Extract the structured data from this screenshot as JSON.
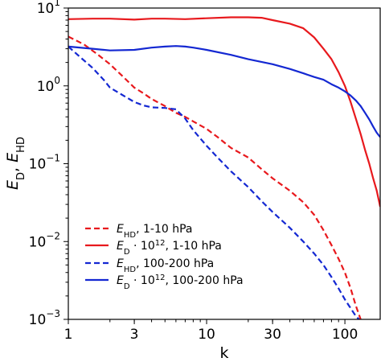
{
  "chart_data": {
    "type": "line",
    "xscale": "log",
    "yscale": "log",
    "xlim": [
      1,
      180
    ],
    "ylim": [
      0.001,
      10
    ],
    "xlabel": "k",
    "ylabel": "E_D, E_HD",
    "grid": false,
    "legend_position": "lower-left",
    "x_ticks": [
      {
        "value": 1,
        "label": "1"
      },
      {
        "value": 3,
        "label": "3"
      },
      {
        "value": 10,
        "label": "10"
      },
      {
        "value": 30,
        "label": "30"
      },
      {
        "value": 100,
        "label": "100"
      }
    ],
    "y_ticks": [
      {
        "value": 0.001,
        "base": "10",
        "exp": "−3"
      },
      {
        "value": 0.01,
        "base": "10",
        "exp": "−2"
      },
      {
        "value": 0.1,
        "base": "10",
        "exp": "−1"
      },
      {
        "value": 1,
        "base": "10",
        "exp": "0"
      },
      {
        "value": 10,
        "base": "10",
        "exp": "1"
      }
    ],
    "series": [
      {
        "name": "E_HD, 1-10 hPa",
        "color": "#e8191d",
        "dash": true,
        "x": [
          1,
          1.3,
          1.6,
          2,
          2.5,
          3,
          3.5,
          4,
          5,
          6,
          7,
          8,
          10,
          12,
          15,
          20,
          25,
          30,
          40,
          50,
          60,
          70,
          80,
          90,
          100,
          110,
          120,
          130
        ],
        "y": [
          4.3,
          3.4,
          2.6,
          1.9,
          1.3,
          0.95,
          0.8,
          0.68,
          0.55,
          0.45,
          0.4,
          0.35,
          0.28,
          0.22,
          0.16,
          0.12,
          0.085,
          0.065,
          0.045,
          0.032,
          0.022,
          0.014,
          0.009,
          0.006,
          0.004,
          0.0025,
          0.0015,
          0.001
        ]
      },
      {
        "name": "E_D · 10^12, 1-10 hPa",
        "color": "#e8191d",
        "dash": false,
        "x": [
          1,
          1.5,
          2,
          3,
          4,
          5,
          7,
          10,
          15,
          20,
          25,
          30,
          40,
          50,
          60,
          70,
          80,
          90,
          100,
          110,
          120,
          130,
          140,
          150,
          160,
          170,
          180
        ],
        "y": [
          7.2,
          7.3,
          7.3,
          7.1,
          7.3,
          7.3,
          7.2,
          7.4,
          7.6,
          7.6,
          7.5,
          7.0,
          6.3,
          5.5,
          4.2,
          3.0,
          2.2,
          1.5,
          1.0,
          0.62,
          0.38,
          0.24,
          0.15,
          0.1,
          0.065,
          0.045,
          0.028
        ]
      },
      {
        "name": "E_HD, 100-200 hPa",
        "color": "#1428d2",
        "dash": true,
        "x": [
          1,
          1.2,
          1.5,
          1.8,
          2,
          2.5,
          3,
          3.5,
          4,
          5,
          6,
          7,
          8,
          10,
          12,
          15,
          20,
          25,
          30,
          40,
          50,
          60,
          70,
          80,
          90,
          100,
          120,
          130
        ],
        "y": [
          3.2,
          2.4,
          1.7,
          1.2,
          0.95,
          0.75,
          0.62,
          0.56,
          0.53,
          0.52,
          0.5,
          0.38,
          0.27,
          0.17,
          0.12,
          0.08,
          0.05,
          0.033,
          0.024,
          0.015,
          0.01,
          0.007,
          0.005,
          0.0035,
          0.0025,
          0.0018,
          0.0011,
          0.00095
        ]
      },
      {
        "name": "E_D · 10^12, 100-200 hPa",
        "color": "#1428d2",
        "dash": false,
        "x": [
          1,
          1.5,
          2,
          3,
          4,
          5,
          6,
          7,
          8,
          10,
          15,
          20,
          30,
          40,
          50,
          60,
          70,
          80,
          90,
          100,
          110,
          120,
          130,
          140,
          150,
          160,
          170,
          180
        ],
        "y": [
          3.2,
          3.0,
          2.85,
          2.9,
          3.1,
          3.2,
          3.25,
          3.2,
          3.1,
          2.9,
          2.5,
          2.2,
          1.9,
          1.65,
          1.45,
          1.3,
          1.2,
          1.05,
          0.95,
          0.85,
          0.75,
          0.65,
          0.55,
          0.45,
          0.37,
          0.3,
          0.25,
          0.22
        ]
      }
    ]
  }
}
